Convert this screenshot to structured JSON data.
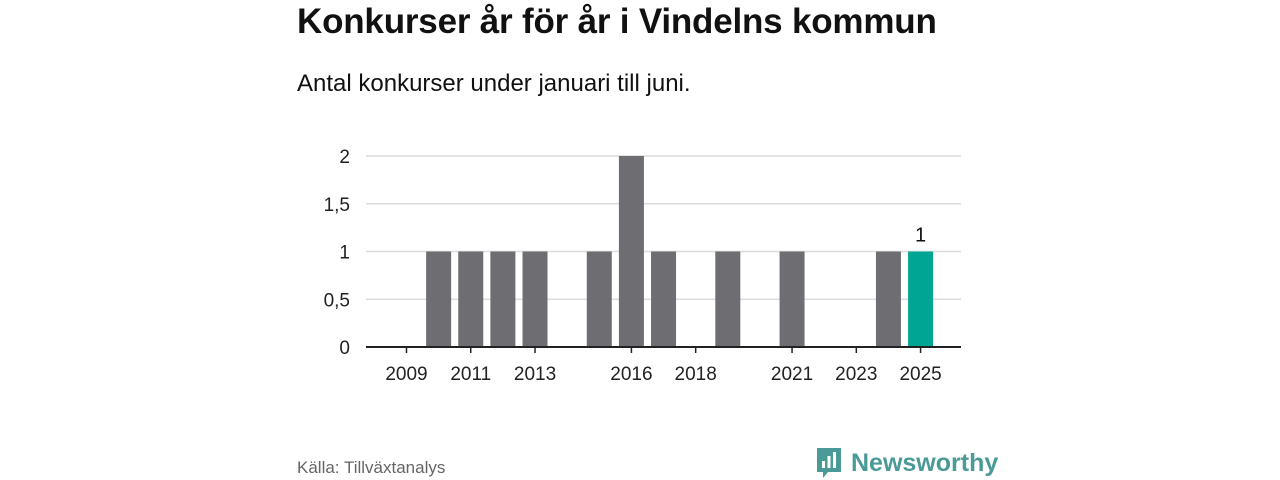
{
  "title": "Konkurser år för år i Vindelns kommun",
  "subtitle": "Antal konkurser under januari till juni.",
  "source": "Källa: Tillväxtanalys",
  "brand": {
    "name": "Newsworthy",
    "icon": "newsworthy-logo-icon"
  },
  "colors": {
    "bar": "#6e6d72",
    "highlight": "#00a693",
    "grid": "#dcdcdc",
    "axis": "#222222",
    "text": "#111111",
    "brand": "#4a9a98"
  },
  "chart_data": {
    "type": "bar",
    "categories": [
      "2009",
      "2010",
      "2011",
      "2012",
      "2013",
      "2014",
      "2015",
      "2016",
      "2017",
      "2018",
      "2019",
      "2020",
      "2021",
      "2022",
      "2023",
      "2024",
      "2025"
    ],
    "values": [
      0,
      1,
      1,
      1,
      1,
      0,
      1,
      2,
      1,
      0,
      1,
      0,
      1,
      0,
      0,
      1,
      1
    ],
    "x_tick_labels": [
      "2009",
      "2011",
      "2013",
      "2016",
      "2018",
      "2021",
      "2023",
      "2025"
    ],
    "y_ticks": [
      "0",
      "0,5",
      "1",
      "1,5",
      "2"
    ],
    "y_tick_values": [
      0,
      0.5,
      1,
      1.5,
      2
    ],
    "ylim": [
      0,
      2
    ],
    "highlight_category": "2025",
    "highlight_label": "1",
    "grid": true,
    "legend": "none",
    "xlabel": "",
    "ylabel": ""
  }
}
